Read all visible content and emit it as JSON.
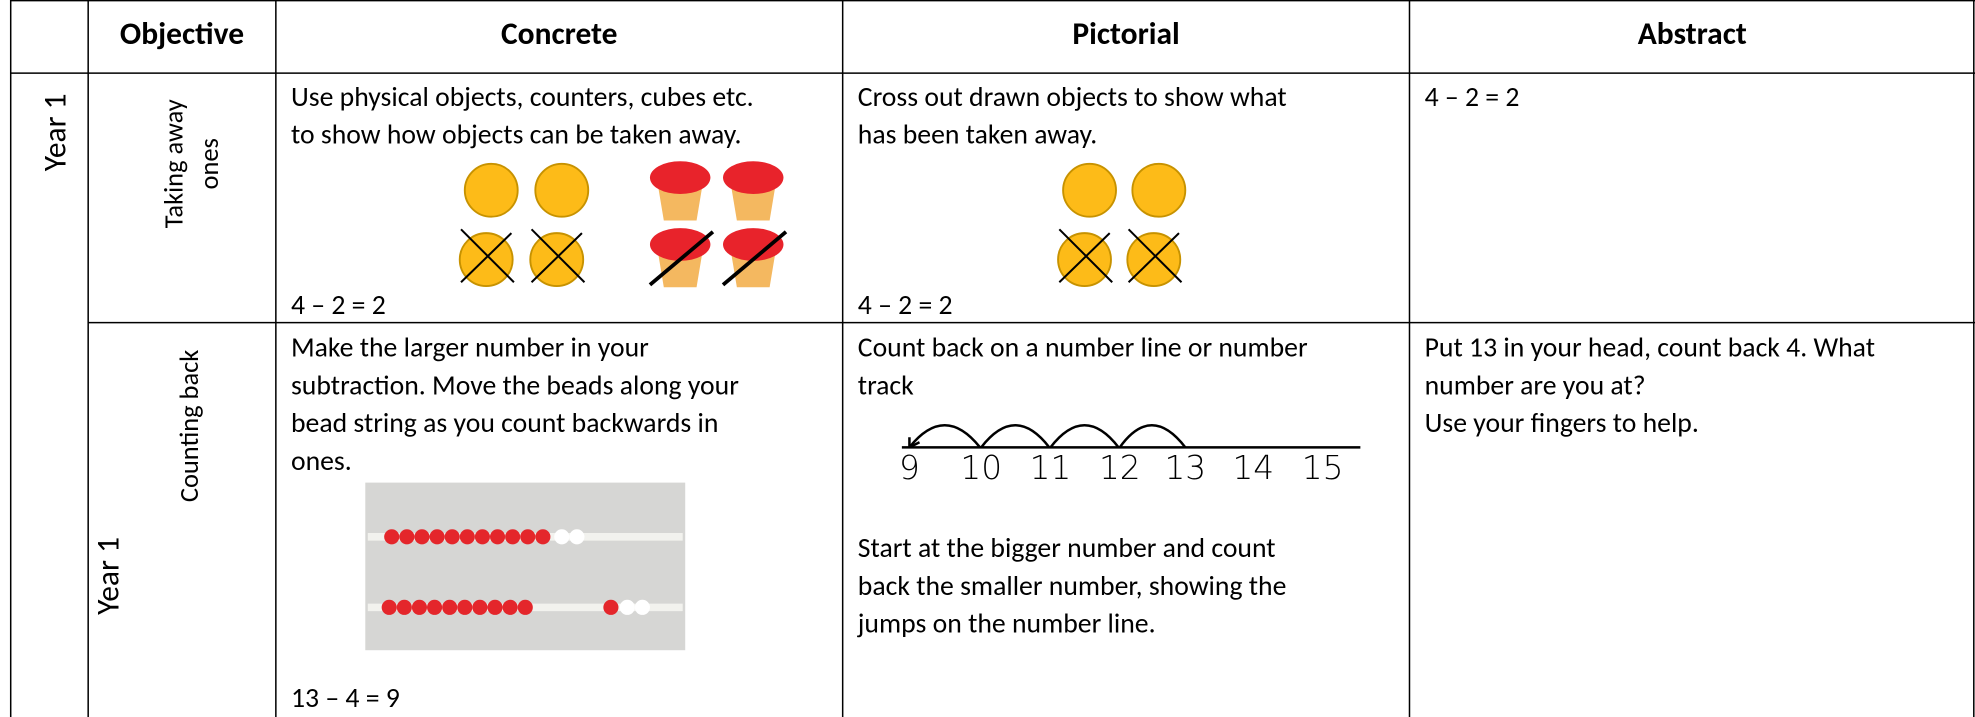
{
  "header": {
    "columns": [
      "Objective",
      "Concrete",
      "Pictorial",
      "Abstract"
    ]
  },
  "rows": [
    {
      "year": "Year 1",
      "objective": [
        "Taking away",
        "ones"
      ],
      "concrete": [
        "Use physical objects, counters, cubes etc.",
        "to show how objects can be taken away."
      ],
      "concrete_equation": "4 – 2 = 2",
      "pictorial": [
        "Cross out drawn objects to show what",
        "has been taken away."
      ],
      "pictorial_equation": "4 – 2 = 2",
      "abstract": [
        "4 – 2 = 2"
      ]
    },
    {
      "year": "Year 1",
      "objective": [
        "Counting back"
      ],
      "concrete": [
        "Make the larger number in your",
        "subtraction. Move the beads along your",
        "bead string as you count backwards in",
        "ones."
      ],
      "concrete_equation": "13 – 4 = 9",
      "pictorial": [
        "Count back on a number line or number",
        "track"
      ],
      "number_line": [
        "9",
        "10",
        "11",
        "12",
        "13",
        "14",
        "15"
      ],
      "pictorial_after": [
        "Start at the bigger number and count",
        "back the smaller number, showing the",
        "jumps on the number line."
      ],
      "abstract": [
        "Put 13 in your head, count back 4. What",
        "number are you at?",
        "Use your fingers to help."
      ]
    }
  ]
}
